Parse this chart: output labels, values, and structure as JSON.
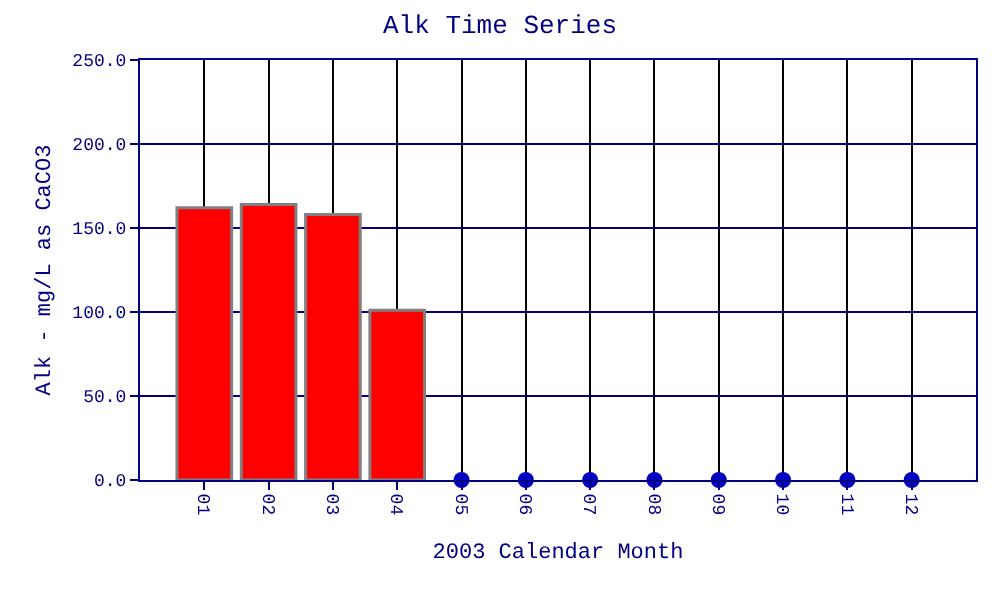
{
  "chart_data": {
    "type": "bar",
    "title": "Alk Time Series",
    "xlabel": "2003 Calendar Month",
    "ylabel": "Alk - mg/L as CaCO3",
    "categories": [
      "01",
      "02",
      "03",
      "04",
      "05",
      "06",
      "07",
      "08",
      "09",
      "10",
      "11",
      "12"
    ],
    "series": [
      {
        "color": "#ff0000",
        "values": [
          162,
          164,
          158,
          101,
          null,
          null,
          null,
          null,
          null,
          null,
          null,
          null
        ]
      },
      {
        "type": "scatter",
        "color": "#0000c0",
        "x": [
          "05",
          "06",
          "07",
          "08",
          "09",
          "10",
          "11",
          "12"
        ],
        "values": [
          0,
          0,
          0,
          0,
          0,
          0,
          0,
          0
        ]
      }
    ],
    "ylim": [
      0,
      250
    ],
    "yticks": [
      {
        "value": 0,
        "label": "0.0"
      },
      {
        "value": 50,
        "label": "50.0"
      },
      {
        "value": 100,
        "label": "100.0"
      },
      {
        "value": 150,
        "label": "150.0"
      },
      {
        "value": 200,
        "label": "200.0"
      },
      {
        "value": 250,
        "label": "250.0"
      }
    ],
    "grid": true,
    "marker": "circle"
  }
}
